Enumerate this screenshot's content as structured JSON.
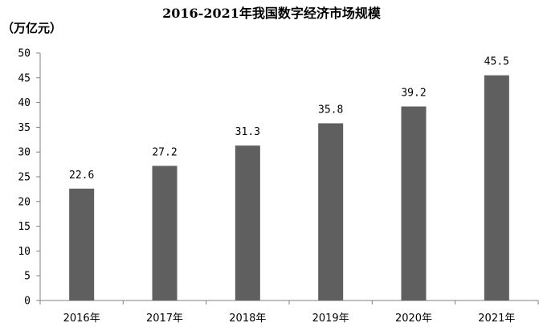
{
  "chart_data": {
    "type": "bar",
    "title": "2016-2021年我国数字经济市场规模",
    "ylabel": "（万亿元）",
    "xlabel": "",
    "categories": [
      "2016年",
      "2017年",
      "2018年",
      "2019年",
      "2020年",
      "2021年"
    ],
    "values": [
      22.6,
      27.2,
      31.3,
      35.8,
      39.2,
      45.5
    ],
    "data_labels": [
      "22.6",
      "27.2",
      "31.3",
      "35.8",
      "39.2",
      "45.5"
    ],
    "ylim": [
      0,
      50
    ],
    "yticks": [
      0,
      5,
      10,
      15,
      20,
      25,
      30,
      35,
      40,
      45,
      50
    ],
    "grid": false,
    "legend": "none",
    "bar_color": "#5f5f5f",
    "axis_color": "#808080"
  }
}
